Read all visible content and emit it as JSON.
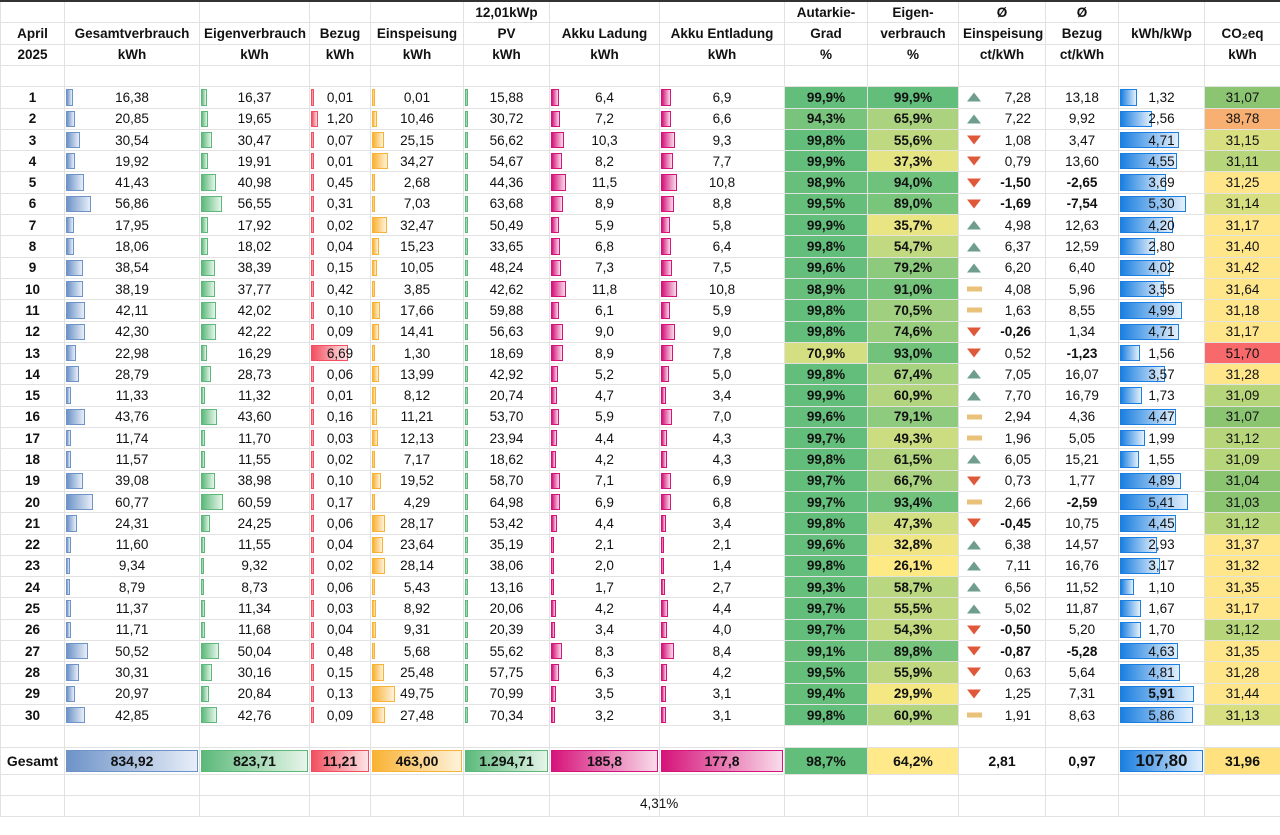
{
  "header": {
    "row1": {
      "pv": "12,01kWp",
      "autarkie": "Autarkie-",
      "eigen_pct": "Eigen-",
      "einsp_avg": "Ø",
      "bezug_avg": "Ø"
    },
    "row2": {
      "month": "April",
      "gesamt": "Gesamtverbrauch",
      "eigen": "Eigenverbrauch",
      "bezug": "Bezug",
      "einsp": "Einspeisung",
      "pv": "PV",
      "akku_l": "Akku Ladung",
      "akku_e": "Akku Entladung",
      "autarkie": "Grad",
      "eigen_pct": "verbrauch",
      "einsp_avg": "Einspeisung",
      "bezug_avg": "Bezug",
      "kwp": "kWh/kWp",
      "co2": "CO₂eq"
    },
    "row3": {
      "year": "2025",
      "gesamt": "kWh",
      "eigen": "kWh",
      "bezug": "kWh",
      "einsp": "kWh",
      "pv": "kWh",
      "akku_l": "kWh",
      "akku_e": "kWh",
      "autarkie": "%",
      "eigen_pct": "%",
      "einsp_avg": "ct/kWh",
      "bezug_avg": "ct/kWh",
      "co2": "kWh"
    }
  },
  "colors": {
    "autarkie_high": "#63be7b",
    "eigen_high": "#63be7b",
    "eigen_mid": "#b5d67f",
    "eigen_low": "#ffe98a",
    "co2_good": "#8cc572",
    "co2_mid": "#c9dc7b",
    "co2_warm": "#ffe27f",
    "co2_orange": "#f8b072",
    "co2_red": "#f8696b"
  },
  "rows": [
    {
      "day": "1",
      "gesamt": "16,38",
      "eigen": "16,37",
      "bezug": "0,01",
      "einsp": "0,01",
      "pv": "15,88",
      "akku_l": "6,4",
      "akku_e": "6,9",
      "autarkie": "99,9%",
      "eigen_pct": "99,9%",
      "trend": "up",
      "einsp_avg": "7,28",
      "bezug_avg": "13,18",
      "kwp": "1,32",
      "co2": "31,07"
    },
    {
      "day": "2",
      "gesamt": "20,85",
      "eigen": "19,65",
      "bezug": "1,20",
      "einsp": "10,46",
      "pv": "30,72",
      "akku_l": "7,2",
      "akku_e": "6,6",
      "autarkie": "94,3%",
      "eigen_pct": "65,9%",
      "trend": "up",
      "einsp_avg": "7,22",
      "bezug_avg": "9,92",
      "kwp": "2,56",
      "co2": "38,78"
    },
    {
      "day": "3",
      "gesamt": "30,54",
      "eigen": "30,47",
      "bezug": "0,07",
      "einsp": "25,15",
      "pv": "56,62",
      "akku_l": "10,3",
      "akku_e": "9,3",
      "autarkie": "99,8%",
      "eigen_pct": "55,6%",
      "trend": "down",
      "einsp_avg": "1,08",
      "bezug_avg": "3,47",
      "kwp": "4,71",
      "co2": "31,15"
    },
    {
      "day": "4",
      "gesamt": "19,92",
      "eigen": "19,91",
      "bezug": "0,01",
      "einsp": "34,27",
      "pv": "54,67",
      "akku_l": "8,2",
      "akku_e": "7,7",
      "autarkie": "99,9%",
      "eigen_pct": "37,3%",
      "trend": "down",
      "einsp_avg": "0,79",
      "bezug_avg": "13,60",
      "kwp": "4,55",
      "co2": "31,11"
    },
    {
      "day": "5",
      "gesamt": "41,43",
      "eigen": "40,98",
      "bezug": "0,45",
      "einsp": "2,68",
      "pv": "44,36",
      "akku_l": "11,5",
      "akku_e": "10,8",
      "autarkie": "98,9%",
      "eigen_pct": "94,0%",
      "trend": "down",
      "einsp_avg": "-1,50",
      "bezug_avg": "-2,65",
      "kwp": "3,69",
      "co2": "31,25"
    },
    {
      "day": "6",
      "gesamt": "56,86",
      "eigen": "56,55",
      "bezug": "0,31",
      "einsp": "7,03",
      "pv": "63,68",
      "akku_l": "8,9",
      "akku_e": "8,8",
      "autarkie": "99,5%",
      "eigen_pct": "89,0%",
      "trend": "down",
      "einsp_avg": "-1,69",
      "bezug_avg": "-7,54",
      "kwp": "5,30",
      "co2": "31,14"
    },
    {
      "day": "7",
      "gesamt": "17,95",
      "eigen": "17,92",
      "bezug": "0,02",
      "einsp": "32,47",
      "pv": "50,49",
      "akku_l": "5,9",
      "akku_e": "5,8",
      "autarkie": "99,9%",
      "eigen_pct": "35,7%",
      "trend": "up",
      "einsp_avg": "4,98",
      "bezug_avg": "12,63",
      "kwp": "4,20",
      "co2": "31,17"
    },
    {
      "day": "8",
      "gesamt": "18,06",
      "eigen": "18,02",
      "bezug": "0,04",
      "einsp": "15,23",
      "pv": "33,65",
      "akku_l": "6,8",
      "akku_e": "6,4",
      "autarkie": "99,8%",
      "eigen_pct": "54,7%",
      "trend": "up",
      "einsp_avg": "6,37",
      "bezug_avg": "12,59",
      "kwp": "2,80",
      "co2": "31,40"
    },
    {
      "day": "9",
      "gesamt": "38,54",
      "eigen": "38,39",
      "bezug": "0,15",
      "einsp": "10,05",
      "pv": "48,24",
      "akku_l": "7,3",
      "akku_e": "7,5",
      "autarkie": "99,6%",
      "eigen_pct": "79,2%",
      "trend": "up",
      "einsp_avg": "6,20",
      "bezug_avg": "6,40",
      "kwp": "4,02",
      "co2": "31,42"
    },
    {
      "day": "10",
      "gesamt": "38,19",
      "eigen": "37,77",
      "bezug": "0,42",
      "einsp": "3,85",
      "pv": "42,62",
      "akku_l": "11,8",
      "akku_e": "10,8",
      "autarkie": "98,9%",
      "eigen_pct": "91,0%",
      "trend": "flat",
      "einsp_avg": "4,08",
      "bezug_avg": "5,96",
      "kwp": "3,55",
      "co2": "31,64"
    },
    {
      "day": "11",
      "gesamt": "42,11",
      "eigen": "42,02",
      "bezug": "0,10",
      "einsp": "17,66",
      "pv": "59,88",
      "akku_l": "6,1",
      "akku_e": "5,9",
      "autarkie": "99,8%",
      "eigen_pct": "70,5%",
      "trend": "flat",
      "einsp_avg": "1,63",
      "bezug_avg": "8,55",
      "kwp": "4,99",
      "co2": "31,18"
    },
    {
      "day": "12",
      "gesamt": "42,30",
      "eigen": "42,22",
      "bezug": "0,09",
      "einsp": "14,41",
      "pv": "56,63",
      "akku_l": "9,0",
      "akku_e": "9,0",
      "autarkie": "99,8%",
      "eigen_pct": "74,6%",
      "trend": "down",
      "einsp_avg": "-0,26",
      "bezug_avg": "1,34",
      "kwp": "4,71",
      "co2": "31,17"
    },
    {
      "day": "13",
      "gesamt": "22,98",
      "eigen": "16,29",
      "bezug": "6,69",
      "einsp": "1,30",
      "pv": "18,69",
      "akku_l": "8,9",
      "akku_e": "7,8",
      "autarkie": "70,9%",
      "eigen_pct": "93,0%",
      "trend": "down",
      "einsp_avg": "0,52",
      "bezug_avg": "-1,23",
      "kwp": "1,56",
      "co2": "51,70"
    },
    {
      "day": "14",
      "gesamt": "28,79",
      "eigen": "28,73",
      "bezug": "0,06",
      "einsp": "13,99",
      "pv": "42,92",
      "akku_l": "5,2",
      "akku_e": "5,0",
      "autarkie": "99,8%",
      "eigen_pct": "67,4%",
      "trend": "up",
      "einsp_avg": "7,05",
      "bezug_avg": "16,07",
      "kwp": "3,57",
      "co2": "31,28"
    },
    {
      "day": "15",
      "gesamt": "11,33",
      "eigen": "11,32",
      "bezug": "0,01",
      "einsp": "8,12",
      "pv": "20,74",
      "akku_l": "4,7",
      "akku_e": "3,4",
      "autarkie": "99,9%",
      "eigen_pct": "60,9%",
      "trend": "up",
      "einsp_avg": "7,70",
      "bezug_avg": "16,79",
      "kwp": "1,73",
      "co2": "31,09"
    },
    {
      "day": "16",
      "gesamt": "43,76",
      "eigen": "43,60",
      "bezug": "0,16",
      "einsp": "11,21",
      "pv": "53,70",
      "akku_l": "5,9",
      "akku_e": "7,0",
      "autarkie": "99,6%",
      "eigen_pct": "79,1%",
      "trend": "flat",
      "einsp_avg": "2,94",
      "bezug_avg": "4,36",
      "kwp": "4,47",
      "co2": "31,07"
    },
    {
      "day": "17",
      "gesamt": "11,74",
      "eigen": "11,70",
      "bezug": "0,03",
      "einsp": "12,13",
      "pv": "23,94",
      "akku_l": "4,4",
      "akku_e": "4,3",
      "autarkie": "99,7%",
      "eigen_pct": "49,3%",
      "trend": "flat",
      "einsp_avg": "1,96",
      "bezug_avg": "5,05",
      "kwp": "1,99",
      "co2": "31,12"
    },
    {
      "day": "18",
      "gesamt": "11,57",
      "eigen": "11,55",
      "bezug": "0,02",
      "einsp": "7,17",
      "pv": "18,62",
      "akku_l": "4,2",
      "akku_e": "4,3",
      "autarkie": "99,8%",
      "eigen_pct": "61,5%",
      "trend": "up",
      "einsp_avg": "6,05",
      "bezug_avg": "15,21",
      "kwp": "1,55",
      "co2": "31,09"
    },
    {
      "day": "19",
      "gesamt": "39,08",
      "eigen": "38,98",
      "bezug": "0,10",
      "einsp": "19,52",
      "pv": "58,70",
      "akku_l": "7,1",
      "akku_e": "6,9",
      "autarkie": "99,7%",
      "eigen_pct": "66,7%",
      "trend": "down",
      "einsp_avg": "0,73",
      "bezug_avg": "1,77",
      "kwp": "4,89",
      "co2": "31,04"
    },
    {
      "day": "20",
      "gesamt": "60,77",
      "eigen": "60,59",
      "bezug": "0,17",
      "einsp": "4,29",
      "pv": "64,98",
      "akku_l": "6,9",
      "akku_e": "6,8",
      "autarkie": "99,7%",
      "eigen_pct": "93,4%",
      "trend": "flat",
      "einsp_avg": "2,66",
      "bezug_avg": "-2,59",
      "kwp": "5,41",
      "co2": "31,03"
    },
    {
      "day": "21",
      "gesamt": "24,31",
      "eigen": "24,25",
      "bezug": "0,06",
      "einsp": "28,17",
      "pv": "53,42",
      "akku_l": "4,4",
      "akku_e": "3,4",
      "autarkie": "99,8%",
      "eigen_pct": "47,3%",
      "trend": "down",
      "einsp_avg": "-0,45",
      "bezug_avg": "10,75",
      "kwp": "4,45",
      "co2": "31,12"
    },
    {
      "day": "22",
      "gesamt": "11,60",
      "eigen": "11,55",
      "bezug": "0,04",
      "einsp": "23,64",
      "pv": "35,19",
      "akku_l": "2,1",
      "akku_e": "2,1",
      "autarkie": "99,6%",
      "eigen_pct": "32,8%",
      "trend": "up",
      "einsp_avg": "6,38",
      "bezug_avg": "14,57",
      "kwp": "2,93",
      "co2": "31,37"
    },
    {
      "day": "23",
      "gesamt": "9,34",
      "eigen": "9,32",
      "bezug": "0,02",
      "einsp": "28,14",
      "pv": "38,06",
      "akku_l": "2,0",
      "akku_e": "1,4",
      "autarkie": "99,8%",
      "eigen_pct": "26,1%",
      "trend": "up",
      "einsp_avg": "7,11",
      "bezug_avg": "16,76",
      "kwp": "3,17",
      "co2": "31,32"
    },
    {
      "day": "24",
      "gesamt": "8,79",
      "eigen": "8,73",
      "bezug": "0,06",
      "einsp": "5,43",
      "pv": "13,16",
      "akku_l": "1,7",
      "akku_e": "2,7",
      "autarkie": "99,3%",
      "eigen_pct": "58,7%",
      "trend": "up",
      "einsp_avg": "6,56",
      "bezug_avg": "11,52",
      "kwp": "1,10",
      "co2": "31,35"
    },
    {
      "day": "25",
      "gesamt": "11,37",
      "eigen": "11,34",
      "bezug": "0,03",
      "einsp": "8,92",
      "pv": "20,06",
      "akku_l": "4,2",
      "akku_e": "4,4",
      "autarkie": "99,7%",
      "eigen_pct": "55,5%",
      "trend": "up",
      "einsp_avg": "5,02",
      "bezug_avg": "11,87",
      "kwp": "1,67",
      "co2": "31,17"
    },
    {
      "day": "26",
      "gesamt": "11,71",
      "eigen": "11,68",
      "bezug": "0,04",
      "einsp": "9,31",
      "pv": "20,39",
      "akku_l": "3,4",
      "akku_e": "4,0",
      "autarkie": "99,7%",
      "eigen_pct": "54,3%",
      "trend": "down",
      "einsp_avg": "-0,50",
      "bezug_avg": "5,20",
      "kwp": "1,70",
      "co2": "31,12"
    },
    {
      "day": "27",
      "gesamt": "50,52",
      "eigen": "50,04",
      "bezug": "0,48",
      "einsp": "5,68",
      "pv": "55,62",
      "akku_l": "8,3",
      "akku_e": "8,4",
      "autarkie": "99,1%",
      "eigen_pct": "89,8%",
      "trend": "down",
      "einsp_avg": "-0,87",
      "bezug_avg": "-5,28",
      "kwp": "4,63",
      "co2": "31,35"
    },
    {
      "day": "28",
      "gesamt": "30,31",
      "eigen": "30,16",
      "bezug": "0,15",
      "einsp": "25,48",
      "pv": "57,75",
      "akku_l": "6,3",
      "akku_e": "4,2",
      "autarkie": "99,5%",
      "eigen_pct": "55,9%",
      "trend": "down",
      "einsp_avg": "0,63",
      "bezug_avg": "5,64",
      "kwp": "4,81",
      "co2": "31,28"
    },
    {
      "day": "29",
      "gesamt": "20,97",
      "eigen": "20,84",
      "bezug": "0,13",
      "einsp": "49,75",
      "pv": "70,99",
      "akku_l": "3,5",
      "akku_e": "3,1",
      "autarkie": "99,4%",
      "eigen_pct": "29,9%",
      "trend": "down",
      "einsp_avg": "1,25",
      "bezug_avg": "7,31",
      "kwp": "5,91",
      "co2": "31,44"
    },
    {
      "day": "30",
      "gesamt": "42,85",
      "eigen": "42,76",
      "bezug": "0,09",
      "einsp": "27,48",
      "pv": "70,34",
      "akku_l": "3,2",
      "akku_e": "3,1",
      "autarkie": "99,8%",
      "eigen_pct": "60,9%",
      "trend": "flat",
      "einsp_avg": "1,91",
      "bezug_avg": "8,63",
      "kwp": "5,86",
      "co2": "31,13"
    }
  ],
  "totals": {
    "label": "Gesamt",
    "gesamt": "834,92",
    "eigen": "823,71",
    "bezug": "11,21",
    "einsp": "463,00",
    "pv": "1.294,71",
    "akku_l": "185,8",
    "akku_e": "177,8",
    "autarkie": "98,7%",
    "eigen_pct": "64,2%",
    "einsp_avg": "2,81",
    "bezug_avg": "0,97",
    "kwp": "107,80",
    "co2": "31,96"
  },
  "note": "4,31%"
}
